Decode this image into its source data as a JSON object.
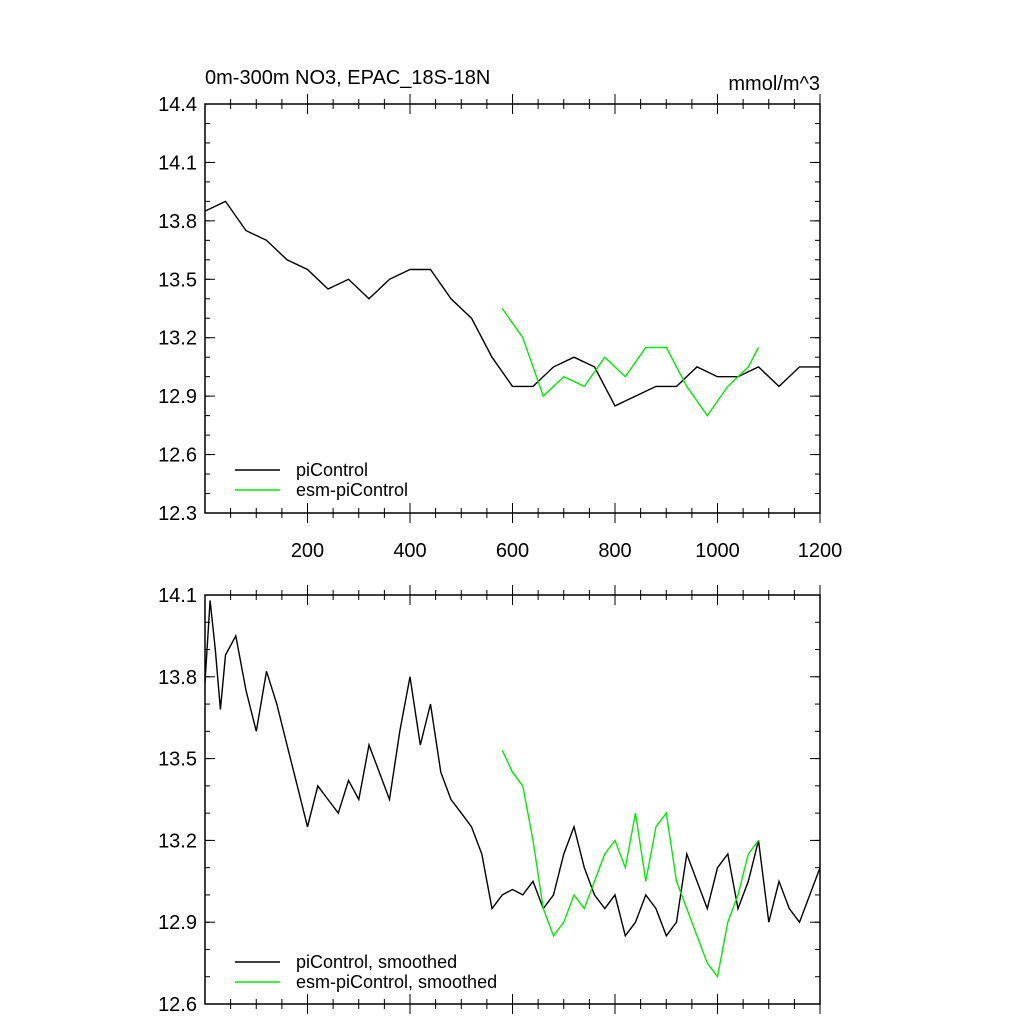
{
  "colors": {
    "piControl": "#000000",
    "esm_piControl": "#00ee00"
  },
  "chart_data": [
    {
      "type": "line",
      "title": "0m-300m NO3, EPAC_18S-18N",
      "units": "mmol/m^3",
      "xlim": [
        0,
        1200
      ],
      "ylim": [
        12.3,
        14.4
      ],
      "xticks": [
        200,
        400,
        600,
        800,
        1000,
        1200
      ],
      "xtick_labels": [
        "200",
        "400",
        "600",
        "800",
        "1000",
        "1200"
      ],
      "yticks": [
        12.3,
        12.6,
        12.9,
        13.2,
        13.5,
        13.8,
        14.1,
        14.4
      ],
      "ytick_labels": [
        "12.3",
        "12.6",
        "12.9",
        "13.2",
        "13.5",
        "13.8",
        "14.1",
        "14.4"
      ],
      "legend_position": "bottom-left",
      "series": [
        {
          "name": "piControl",
          "color": "#000000",
          "x": [
            0,
            40,
            80,
            120,
            160,
            200,
            240,
            280,
            320,
            360,
            400,
            440,
            480,
            520,
            560,
            600,
            640,
            680,
            720,
            760,
            800,
            840,
            880,
            920,
            960,
            1000,
            1040,
            1080,
            1120,
            1160,
            1200
          ],
          "y": [
            13.85,
            13.9,
            13.75,
            13.7,
            13.6,
            13.55,
            13.45,
            13.5,
            13.4,
            13.5,
            13.55,
            13.55,
            13.4,
            13.3,
            13.1,
            12.95,
            12.95,
            13.05,
            13.1,
            13.05,
            12.85,
            12.9,
            12.95,
            12.95,
            13.05,
            13.0,
            13.0,
            13.05,
            12.95,
            13.05,
            13.05
          ]
        },
        {
          "name": "esm-piControl",
          "color": "#00ee00",
          "x": [
            580,
            620,
            660,
            700,
            740,
            780,
            820,
            860,
            900,
            940,
            980,
            1020,
            1060,
            1080
          ],
          "y": [
            13.35,
            13.2,
            12.9,
            13.0,
            12.95,
            13.1,
            13.0,
            13.15,
            13.15,
            12.95,
            12.8,
            12.95,
            13.05,
            13.15
          ]
        }
      ]
    },
    {
      "type": "line",
      "title": "",
      "xlim": [
        0,
        1200
      ],
      "ylim": [
        12.6,
        14.1
      ],
      "xticks": [
        200,
        400,
        600,
        800,
        1000,
        1200
      ],
      "yticks": [
        12.6,
        12.9,
        13.2,
        13.5,
        13.8,
        14.1
      ],
      "ytick_labels": [
        "12.6",
        "12.9",
        "13.2",
        "13.5",
        "13.8",
        "14.1"
      ],
      "legend_position": "bottom-left",
      "series": [
        {
          "name": "piControl, smoothed",
          "color": "#000000",
          "x": [
            0,
            10,
            20,
            30,
            40,
            60,
            80,
            100,
            120,
            140,
            160,
            180,
            200,
            220,
            240,
            260,
            280,
            300,
            320,
            340,
            360,
            380,
            400,
            420,
            440,
            460,
            480,
            500,
            520,
            540,
            560,
            580,
            600,
            620,
            640,
            660,
            680,
            700,
            720,
            740,
            760,
            780,
            800,
            820,
            840,
            860,
            880,
            900,
            920,
            940,
            960,
            980,
            1000,
            1020,
            1040,
            1060,
            1080,
            1100,
            1120,
            1140,
            1160,
            1180,
            1200
          ],
          "y": [
            13.78,
            14.08,
            13.9,
            13.68,
            13.88,
            13.95,
            13.75,
            13.6,
            13.82,
            13.7,
            13.55,
            13.4,
            13.25,
            13.4,
            13.35,
            13.3,
            13.42,
            13.35,
            13.55,
            13.45,
            13.35,
            13.6,
            13.8,
            13.55,
            13.7,
            13.45,
            13.35,
            13.3,
            13.25,
            13.15,
            12.95,
            13.0,
            13.02,
            13.0,
            13.05,
            12.95,
            13.0,
            13.15,
            13.25,
            13.1,
            13.0,
            12.95,
            13.0,
            12.85,
            12.9,
            13.0,
            12.95,
            12.85,
            12.9,
            13.15,
            13.05,
            12.95,
            13.1,
            13.15,
            12.95,
            13.05,
            13.2,
            12.9,
            13.05,
            12.95,
            12.9,
            13.0,
            13.1
          ]
        },
        {
          "name": "esm-piControl, smoothed",
          "color": "#00ee00",
          "x": [
            580,
            600,
            620,
            640,
            660,
            680,
            700,
            720,
            740,
            760,
            780,
            800,
            820,
            840,
            860,
            880,
            900,
            920,
            940,
            960,
            980,
            1000,
            1020,
            1040,
            1060,
            1080
          ],
          "y": [
            13.53,
            13.45,
            13.4,
            13.2,
            12.95,
            12.85,
            12.9,
            13.0,
            12.95,
            13.05,
            13.15,
            13.2,
            13.1,
            13.3,
            13.05,
            13.25,
            13.3,
            13.05,
            12.95,
            12.85,
            12.75,
            12.7,
            12.9,
            13.0,
            13.15,
            13.2
          ]
        }
      ]
    }
  ]
}
